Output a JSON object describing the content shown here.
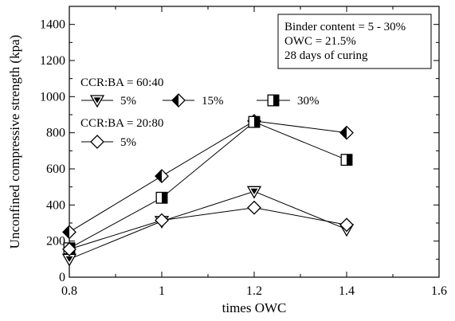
{
  "chart_data": {
    "type": "line",
    "xlabel": "times OWC",
    "ylabel": "Unconfined compressive strength (kpa)",
    "xlim": [
      0.8,
      1.6
    ],
    "ylim": [
      0,
      1500
    ],
    "xticks": [
      0.8,
      1,
      1.2,
      1.4,
      1.6
    ],
    "yticks": [
      0,
      200,
      400,
      600,
      800,
      1000,
      1200,
      1400
    ],
    "grid": false,
    "annotation_lines": [
      "Binder content = 5 - 30%",
      "OWC = 21.5%",
      "28 days of curing"
    ],
    "legend_groups": [
      {
        "label": "CCR:BA = 60:40",
        "entries": [
          "5%",
          "15%",
          "30%"
        ]
      },
      {
        "label": "CCR:BA = 20:80",
        "entries": [
          "5%"
        ]
      }
    ],
    "series": [
      {
        "name": "5%",
        "group": "CCR:BA = 60:40",
        "marker": "down-triangle",
        "x": [
          0.8,
          1.0,
          1.2,
          1.4
        ],
        "y": [
          100,
          310,
          475,
          265
        ]
      },
      {
        "name": "15%",
        "group": "CCR:BA = 60:40",
        "marker": "half-filled-diamond",
        "x": [
          0.8,
          1.0,
          1.2,
          1.4
        ],
        "y": [
          250,
          560,
          865,
          800
        ]
      },
      {
        "name": "30%",
        "group": "CCR:BA = 60:40",
        "marker": "half-filled-square",
        "x": [
          0.8,
          1.0,
          1.2,
          1.4
        ],
        "y": [
          160,
          440,
          860,
          650
        ]
      },
      {
        "name": "5%",
        "group": "CCR:BA = 20:80",
        "marker": "open-diamond",
        "x": [
          0.8,
          1.0,
          1.2,
          1.4
        ],
        "y": [
          155,
          315,
          385,
          290
        ]
      }
    ]
  }
}
